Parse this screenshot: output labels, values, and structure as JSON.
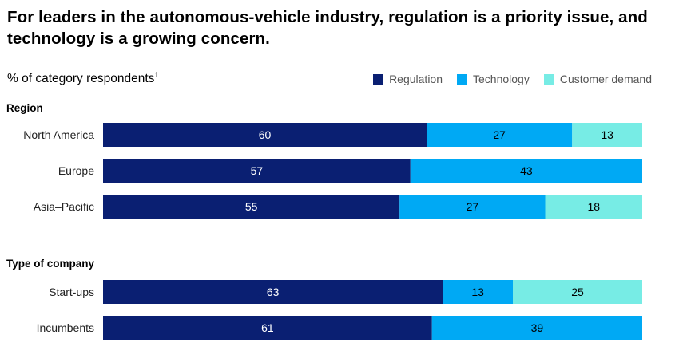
{
  "title": "For leaders in the autonomous-vehicle industry, regulation is a priority issue, and technology is a growing concern.",
  "subtitle": "% of category respondents",
  "subtitle_footnote": "1",
  "colors": {
    "regulation": "#0a1f72",
    "technology": "#00a9f4",
    "customer_demand": "#77ece5"
  },
  "chart_data": {
    "type": "bar",
    "orientation": "horizontal",
    "stacked": true,
    "xlim": [
      0,
      100
    ],
    "legend_placement": "top-right",
    "grid": false,
    "series": [
      {
        "name": "Regulation"
      },
      {
        "name": "Technology"
      },
      {
        "name": "Customer demand"
      }
    ],
    "groups": [
      {
        "label": "Region",
        "rows": [
          {
            "category": "North America",
            "values": [
              60,
              27,
              13
            ]
          },
          {
            "category": "Europe",
            "values": [
              57,
              43,
              0
            ]
          },
          {
            "category": "Asia–Pacific",
            "values": [
              55,
              27,
              18
            ]
          }
        ]
      },
      {
        "label": "Type of company",
        "rows": [
          {
            "category": "Start-ups",
            "values": [
              63,
              13,
              25
            ]
          },
          {
            "category": "Incumbents",
            "values": [
              61,
              39,
              0
            ]
          }
        ]
      }
    ]
  }
}
